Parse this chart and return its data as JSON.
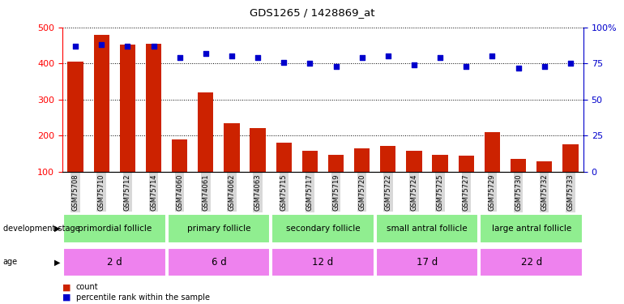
{
  "title": "GDS1265 / 1428869_at",
  "samples": [
    "GSM75708",
    "GSM75710",
    "GSM75712",
    "GSM75714",
    "GSM74060",
    "GSM74061",
    "GSM74062",
    "GSM74063",
    "GSM75715",
    "GSM75717",
    "GSM75719",
    "GSM75720",
    "GSM75722",
    "GSM75724",
    "GSM75725",
    "GSM75727",
    "GSM75729",
    "GSM75730",
    "GSM75732",
    "GSM75733"
  ],
  "counts": [
    405,
    480,
    453,
    455,
    190,
    320,
    235,
    222,
    180,
    158,
    148,
    165,
    171,
    158,
    148,
    145,
    210,
    135,
    128,
    175
  ],
  "percentiles": [
    87,
    88,
    87,
    87,
    79,
    82,
    80,
    79,
    76,
    75,
    73,
    79,
    80,
    74,
    79,
    73,
    80,
    72,
    73,
    75
  ],
  "ylim_left": [
    100,
    500
  ],
  "ylim_right": [
    0,
    100
  ],
  "yticks_left": [
    100,
    200,
    300,
    400,
    500
  ],
  "yticks_right": [
    0,
    25,
    50,
    75,
    100
  ],
  "ytick_right_labels": [
    "0",
    "25",
    "50",
    "75",
    "100%"
  ],
  "groups": [
    {
      "label": "primordial follicle",
      "age": "2 d",
      "start": 0,
      "end": 4
    },
    {
      "label": "primary follicle",
      "age": "6 d",
      "start": 4,
      "end": 8
    },
    {
      "label": "secondary follicle",
      "age": "12 d",
      "start": 8,
      "end": 12
    },
    {
      "label": "small antral follicle",
      "age": "17 d",
      "start": 12,
      "end": 16
    },
    {
      "label": "large antral follicle",
      "age": "22 d",
      "start": 16,
      "end": 20
    }
  ],
  "stage_color": "#90EE90",
  "age_color": "#EE82EE",
  "bar_color": "#CC2200",
  "dot_color": "#0000CC",
  "bg_color": "#FFFFFF",
  "xtick_bg": "#D8D8D8",
  "grid_color": "#000000",
  "label_count": "count",
  "label_percentile": "percentile rank within the sample"
}
